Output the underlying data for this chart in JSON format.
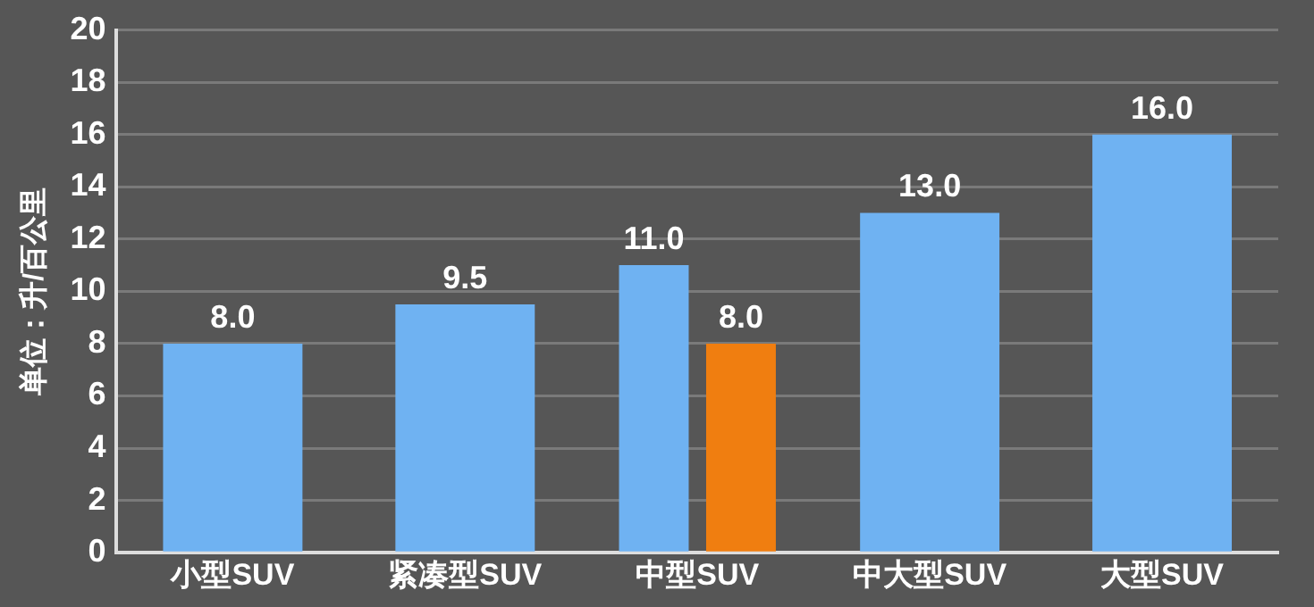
{
  "chart_data": {
    "type": "bar",
    "ylabel": "单位：升/百公里",
    "categories": [
      "小型SUV",
      "紧凑型SUV",
      "中型SUV",
      "中大型SUV",
      "大型SUV"
    ],
    "series": [
      {
        "color": "#6fb2f2",
        "values": [
          8.0,
          9.5,
          11.0,
          13.0,
          16.0
        ],
        "value_labels": [
          "8.0",
          "9.5",
          "11.0",
          "13.0",
          "16.0"
        ]
      },
      {
        "color": "#f07e10",
        "values": [
          null,
          null,
          8.0,
          null,
          null
        ],
        "value_labels": [
          null,
          null,
          "8.0",
          null,
          null
        ]
      }
    ],
    "ylim": [
      0,
      20
    ],
    "yticks": [
      0,
      2,
      4,
      6,
      8,
      10,
      12,
      14,
      16,
      18,
      20
    ],
    "grid": "y",
    "legend": false
  }
}
